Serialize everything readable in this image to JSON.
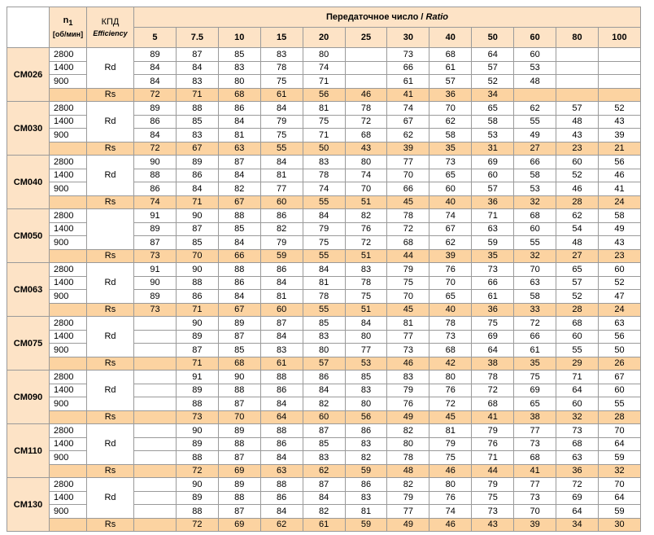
{
  "header": {
    "rpm_title": "n",
    "rpm_sub": "1",
    "rpm_unit": "[об/мин]",
    "eff_title": "КПД",
    "eff_sub": "Efficiency",
    "ratio_title": "Передаточное число / ",
    "ratio_title_en": "Ratio",
    "ratios": [
      5,
      7.5,
      10,
      15,
      20,
      25,
      30,
      40,
      50,
      60,
      80,
      100
    ]
  },
  "groups": [
    {
      "model": "CM026",
      "efficiency": "Rd",
      "rows": [
        {
          "rpm": 2800,
          "values": [
            89,
            87,
            85,
            83,
            80,
            null,
            73,
            68,
            64,
            60,
            null,
            null
          ]
        },
        {
          "rpm": 1400,
          "values": [
            84,
            84,
            83,
            78,
            74,
            null,
            66,
            61,
            57,
            53,
            null,
            null
          ]
        },
        {
          "rpm": 900,
          "values": [
            84,
            83,
            80,
            75,
            71,
            null,
            61,
            57,
            52,
            48,
            null,
            null
          ]
        }
      ],
      "rs_label": "Rs",
      "rs": [
        72,
        71,
        68,
        61,
        56,
        46,
        41,
        36,
        34,
        null,
        null,
        null
      ]
    },
    {
      "model": "CM030",
      "efficiency": "Rd",
      "rows": [
        {
          "rpm": 2800,
          "values": [
            89,
            88,
            86,
            84,
            81,
            78,
            74,
            70,
            65,
            62,
            57,
            52
          ]
        },
        {
          "rpm": 1400,
          "values": [
            86,
            85,
            84,
            79,
            75,
            72,
            67,
            62,
            58,
            55,
            48,
            43
          ]
        },
        {
          "rpm": 900,
          "values": [
            84,
            83,
            81,
            75,
            71,
            68,
            62,
            58,
            53,
            49,
            43,
            39
          ]
        }
      ],
      "rs_label": "Rs",
      "rs": [
        72,
        67,
        63,
        55,
        50,
        43,
        39,
        35,
        31,
        27,
        23,
        21
      ]
    },
    {
      "model": "CM040",
      "efficiency": "Rd",
      "rows": [
        {
          "rpm": 2800,
          "values": [
            90,
            89,
            87,
            84,
            83,
            80,
            77,
            73,
            69,
            66,
            60,
            56
          ]
        },
        {
          "rpm": 1400,
          "values": [
            88,
            86,
            84,
            81,
            78,
            74,
            70,
            65,
            60,
            58,
            52,
            46
          ]
        },
        {
          "rpm": 900,
          "values": [
            86,
            84,
            82,
            77,
            74,
            70,
            66,
            60,
            57,
            53,
            46,
            41
          ]
        }
      ],
      "rs_label": "Rs",
      "rs": [
        74,
        71,
        67,
        60,
        55,
        51,
        45,
        40,
        36,
        32,
        28,
        24
      ]
    },
    {
      "model": "CM050",
      "rows": [
        {
          "rpm": 2800,
          "values": [
            91,
            90,
            88,
            86,
            84,
            82,
            78,
            74,
            71,
            68,
            62,
            58
          ]
        },
        {
          "rpm": 1400,
          "values": [
            89,
            87,
            85,
            82,
            79,
            76,
            72,
            67,
            63,
            60,
            54,
            49
          ]
        },
        {
          "rpm": 900,
          "values": [
            87,
            85,
            84,
            79,
            75,
            72,
            68,
            62,
            59,
            55,
            48,
            43
          ]
        }
      ],
      "rs_label": "Rs",
      "rs": [
        73,
        70,
        66,
        59,
        55,
        51,
        44,
        39,
        35,
        32,
        27,
        23
      ]
    },
    {
      "model": "CM063",
      "efficiency": "Rd",
      "rows": [
        {
          "rpm": 2800,
          "values": [
            91,
            90,
            88,
            86,
            84,
            83,
            79,
            76,
            73,
            70,
            65,
            60
          ]
        },
        {
          "rpm": 1400,
          "values": [
            90,
            88,
            86,
            84,
            81,
            78,
            75,
            70,
            66,
            63,
            57,
            52
          ]
        },
        {
          "rpm": 900,
          "values": [
            89,
            86,
            84,
            81,
            78,
            75,
            70,
            65,
            61,
            58,
            52,
            47
          ]
        }
      ],
      "rs_label": "Rs",
      "rs": [
        73,
        71,
        67,
        60,
        55,
        51,
        45,
        40,
        36,
        33,
        28,
        24
      ]
    },
    {
      "model": "CM075",
      "efficiency": "Rd",
      "rows": [
        {
          "rpm": 2800,
          "values": [
            null,
            90,
            89,
            87,
            85,
            84,
            81,
            78,
            75,
            72,
            68,
            63
          ]
        },
        {
          "rpm": 1400,
          "values": [
            null,
            89,
            87,
            84,
            83,
            80,
            77,
            73,
            69,
            66,
            60,
            56
          ]
        },
        {
          "rpm": 900,
          "values": [
            null,
            87,
            85,
            83,
            80,
            77,
            73,
            68,
            64,
            61,
            55,
            50
          ]
        }
      ],
      "rs_label": "Rs",
      "rs": [
        null,
        71,
        68,
        61,
        57,
        53,
        46,
        42,
        38,
        35,
        29,
        26
      ]
    },
    {
      "model": "CM090",
      "efficiency": "Rd",
      "rows": [
        {
          "rpm": 2800,
          "values": [
            null,
            91,
            90,
            88,
            86,
            85,
            83,
            80,
            78,
            75,
            71,
            67
          ]
        },
        {
          "rpm": 1400,
          "values": [
            null,
            89,
            88,
            86,
            84,
            83,
            79,
            76,
            72,
            69,
            64,
            60
          ]
        },
        {
          "rpm": 900,
          "values": [
            null,
            88,
            87,
            84,
            82,
            80,
            76,
            72,
            68,
            65,
            60,
            55
          ]
        }
      ],
      "rs_label": "Rs",
      "rs": [
        null,
        73,
        70,
        64,
        60,
        56,
        49,
        45,
        41,
        38,
        32,
        28
      ]
    },
    {
      "model": "CM110",
      "efficiency": "Rd",
      "rows": [
        {
          "rpm": 2800,
          "values": [
            null,
            90,
            89,
            88,
            87,
            86,
            82,
            81,
            79,
            77,
            73,
            70
          ]
        },
        {
          "rpm": 1400,
          "values": [
            null,
            89,
            88,
            86,
            85,
            83,
            80,
            79,
            76,
            73,
            68,
            64
          ]
        },
        {
          "rpm": 900,
          "values": [
            null,
            88,
            87,
            84,
            83,
            82,
            78,
            75,
            71,
            68,
            63,
            59
          ]
        }
      ],
      "rs_label": "Rs",
      "rs": [
        null,
        72,
        69,
        63,
        62,
        59,
        48,
        46,
        44,
        41,
        36,
        32
      ]
    },
    {
      "model": "CM130",
      "efficiency": "Rd",
      "rows": [
        {
          "rpm": 2800,
          "values": [
            null,
            90,
            89,
            88,
            87,
            86,
            82,
            80,
            79,
            77,
            72,
            70
          ]
        },
        {
          "rpm": 1400,
          "values": [
            null,
            89,
            88,
            86,
            84,
            83,
            79,
            76,
            75,
            73,
            69,
            64
          ]
        },
        {
          "rpm": 900,
          "values": [
            null,
            88,
            87,
            84,
            82,
            81,
            77,
            74,
            73,
            70,
            64,
            59
          ]
        }
      ],
      "rs_label": "Rs",
      "rs": [
        null,
        72,
        69,
        62,
        61,
        59,
        49,
        46,
        43,
        39,
        34,
        30
      ]
    }
  ]
}
